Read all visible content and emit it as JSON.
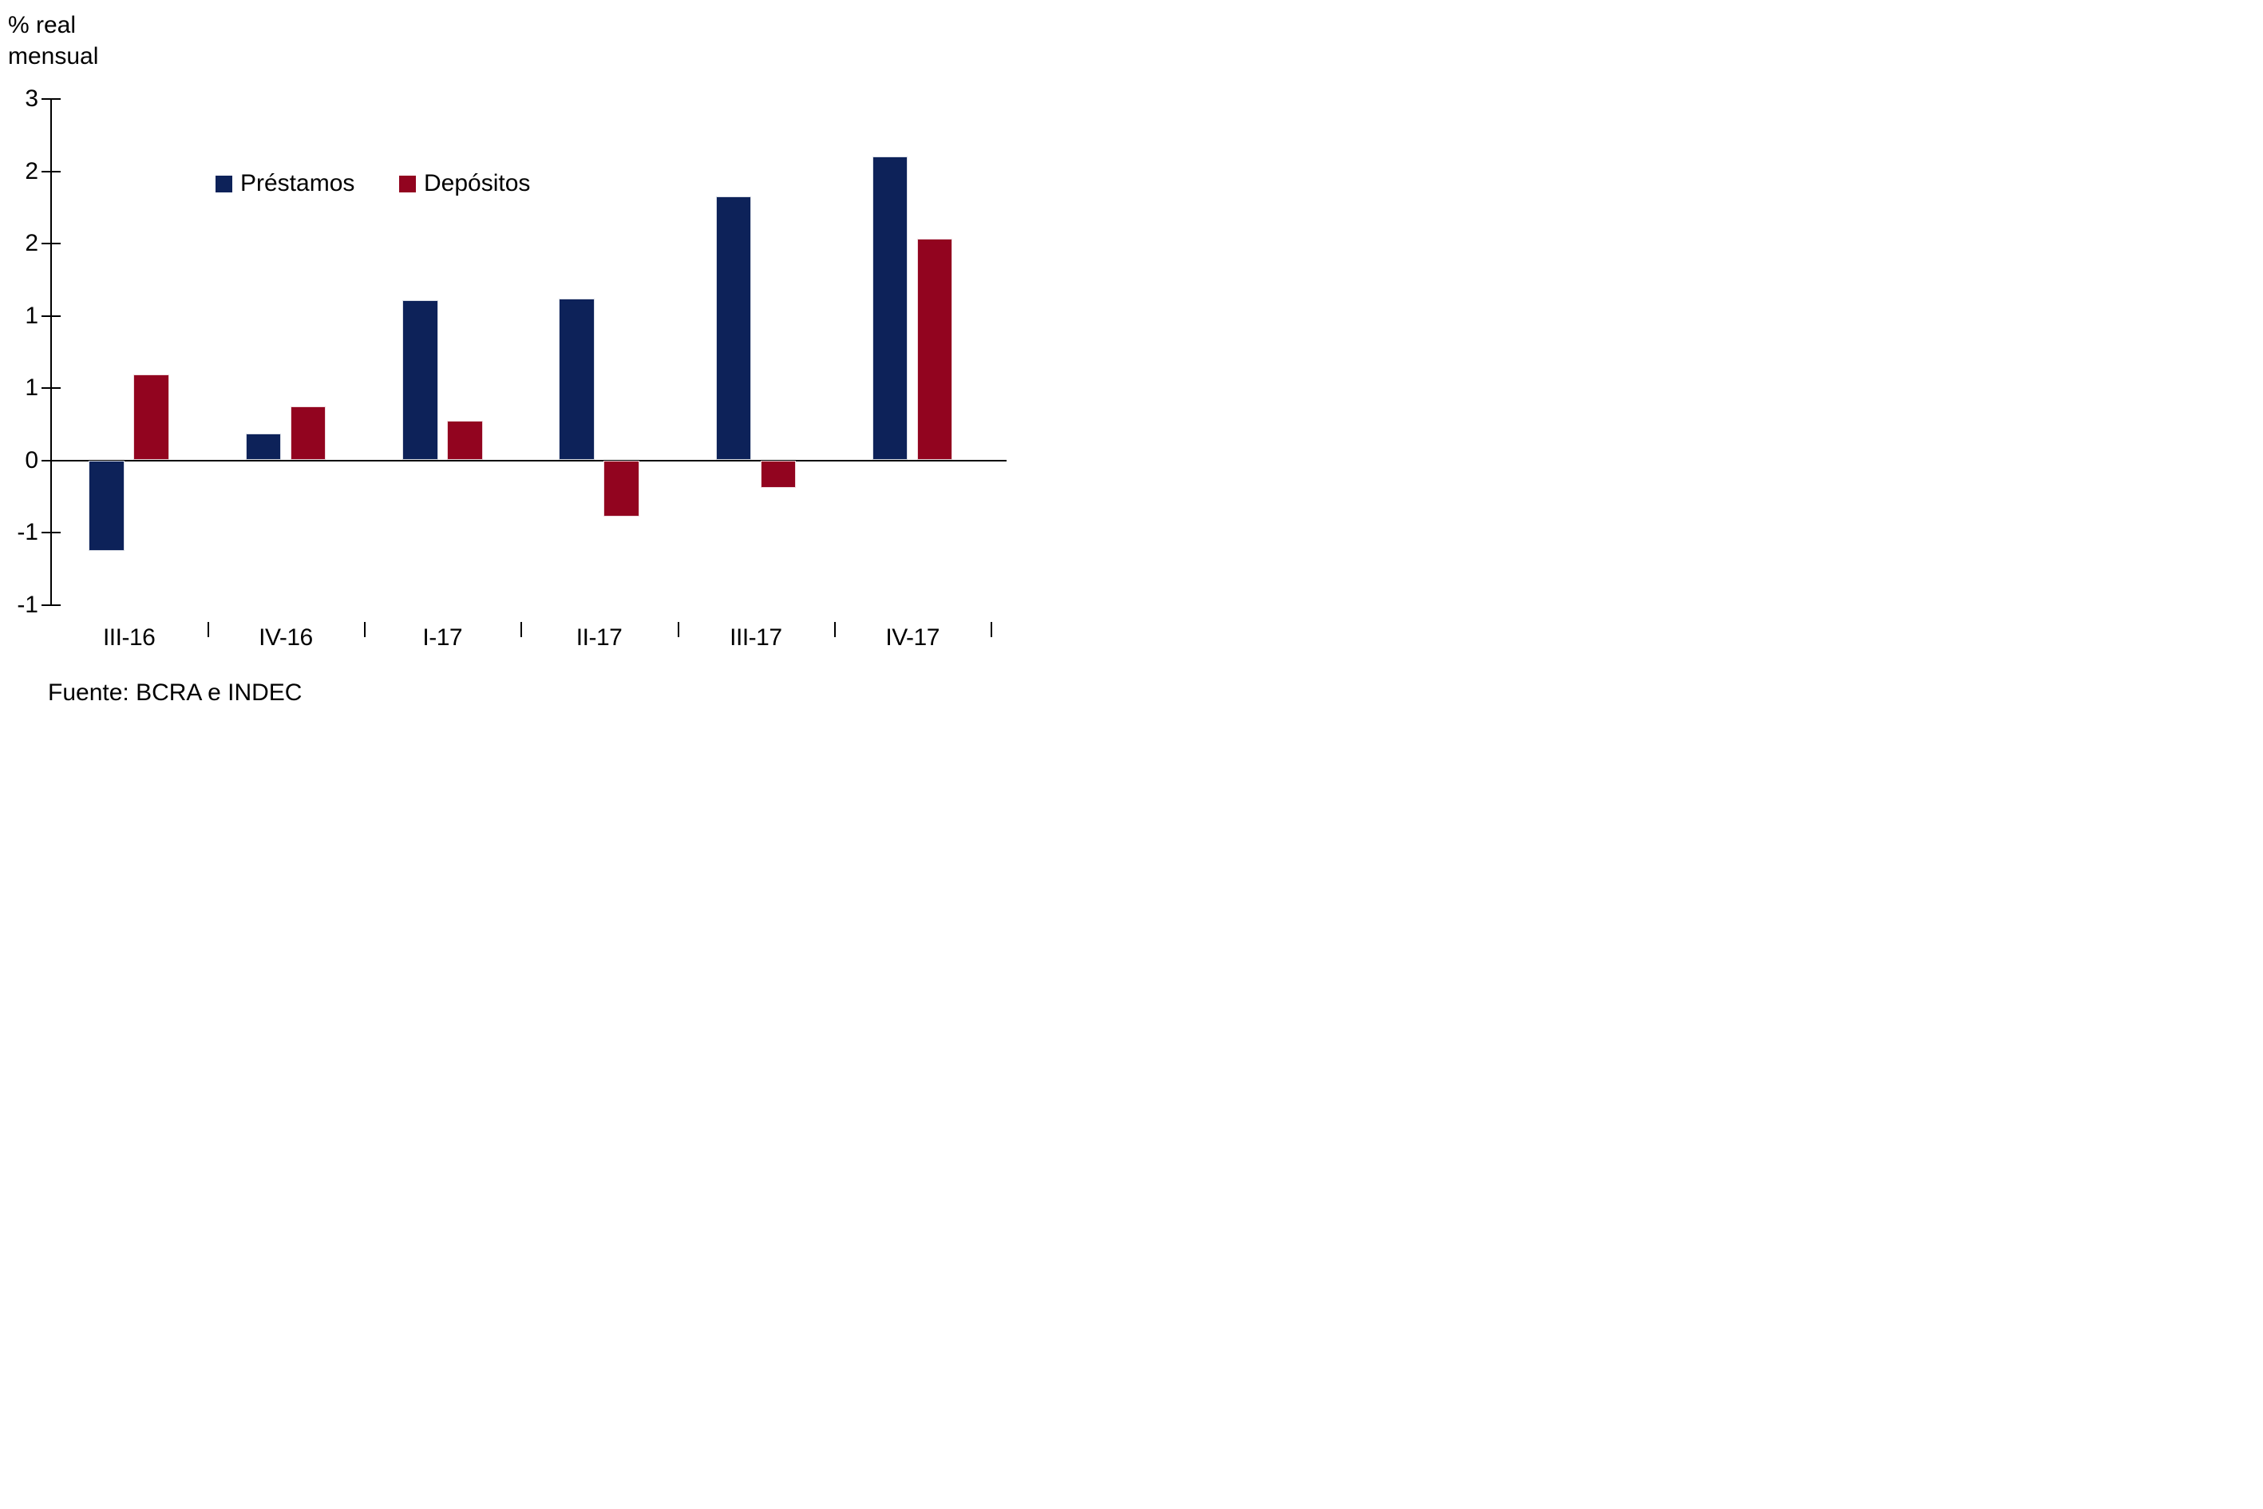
{
  "page": {
    "axis_title": "% real\nmensual",
    "source": "Fuente: BCRA e INDEC"
  },
  "chart_data": {
    "type": "bar",
    "title": "% real mensual",
    "categories": [
      "III-16",
      "IV-16",
      "I-17",
      "II-17",
      "III-17",
      "IV-17"
    ],
    "series": [
      {
        "name": "Préstamos",
        "color": "#0d2259",
        "values": [
          -0.75,
          0.22,
          1.33,
          1.34,
          2.19,
          2.52
        ]
      },
      {
        "name": "Depósitos",
        "color": "#92041f",
        "values": [
          0.71,
          0.45,
          0.33,
          -0.47,
          -0.23,
          1.84
        ]
      }
    ],
    "xlabel": "",
    "ylabel": "% real mensual",
    "ylim": [
      -1.2,
      3.0
    ],
    "y_major_step": 0.6,
    "y_tick_values": [
      3.0,
      2.4,
      1.8,
      1.2,
      0.6,
      0.0,
      -0.6,
      -1.2
    ],
    "y_tick_labels": [
      "3",
      "2",
      "2",
      "1",
      "1",
      "0",
      "-1",
      "-1"
    ],
    "grid": false,
    "zero_line": true,
    "legend_position": "top-inside",
    "source": "Fuente: BCRA e INDEC"
  }
}
